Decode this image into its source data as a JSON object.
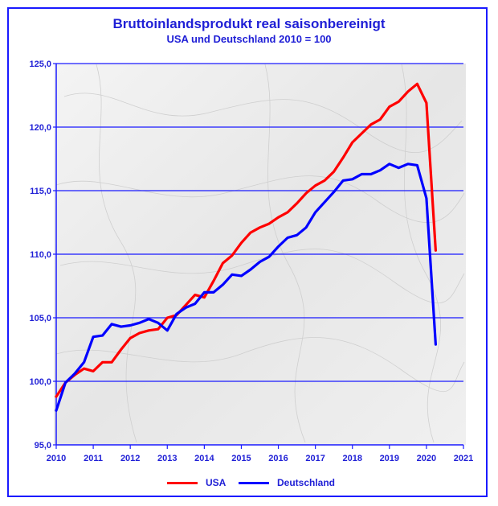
{
  "chart_data": {
    "type": "line",
    "title": "Bruttoinlandsprodukt real saisonbereinigt",
    "subtitle": "USA und Deutschland 2010 = 100",
    "xlabel": "",
    "ylabel": "",
    "xlim": [
      2010,
      2021
    ],
    "ylim": [
      95,
      125
    ],
    "grid": true,
    "legend_position": "bottom",
    "x_ticks": [
      "2010",
      "2011",
      "2012",
      "2013",
      "2014",
      "2015",
      "2016",
      "2017",
      "2018",
      "2019",
      "2020",
      "2021"
    ],
    "y_ticks": [
      "95,0",
      "100,0",
      "105,0",
      "110,0",
      "115,0",
      "120,0",
      "125,0"
    ],
    "x": [
      2010.0,
      2010.25,
      2010.5,
      2010.75,
      2011.0,
      2011.25,
      2011.5,
      2011.75,
      2012.0,
      2012.25,
      2012.5,
      2012.75,
      2013.0,
      2013.25,
      2013.5,
      2013.75,
      2014.0,
      2014.25,
      2014.5,
      2014.75,
      2015.0,
      2015.25,
      2015.5,
      2015.75,
      2016.0,
      2016.25,
      2016.5,
      2016.75,
      2017.0,
      2017.25,
      2017.5,
      2017.75,
      2018.0,
      2018.25,
      2018.5,
      2018.75,
      2019.0,
      2019.25,
      2019.5,
      2019.75,
      2020.0,
      2020.25
    ],
    "series": [
      {
        "name": "USA",
        "color": "#ff0000",
        "values": [
          98.8,
          99.9,
          100.5,
          101.0,
          100.8,
          101.5,
          101.5,
          102.5,
          103.4,
          103.8,
          104.0,
          104.1,
          105.0,
          105.2,
          106.0,
          106.8,
          106.6,
          107.9,
          109.3,
          109.9,
          110.9,
          111.7,
          112.1,
          112.4,
          112.9,
          113.3,
          114.0,
          114.8,
          115.4,
          115.8,
          116.5,
          117.6,
          118.8,
          119.5,
          120.2,
          120.6,
          121.6,
          122.0,
          122.8,
          123.4,
          121.9,
          110.3
        ]
      },
      {
        "name": "Deutschland",
        "color": "#0000ff",
        "values": [
          97.7,
          99.9,
          100.6,
          101.5,
          103.5,
          103.6,
          104.5,
          104.3,
          104.4,
          104.6,
          104.9,
          104.6,
          104.0,
          105.3,
          105.8,
          106.1,
          107.0,
          107.0,
          107.6,
          108.4,
          108.3,
          108.8,
          109.4,
          109.8,
          110.6,
          111.3,
          111.5,
          112.1,
          113.3,
          114.1,
          114.9,
          115.8,
          115.9,
          116.3,
          116.3,
          116.6,
          117.1,
          116.8,
          117.1,
          117.0,
          114.4,
          102.9
        ]
      }
    ]
  }
}
